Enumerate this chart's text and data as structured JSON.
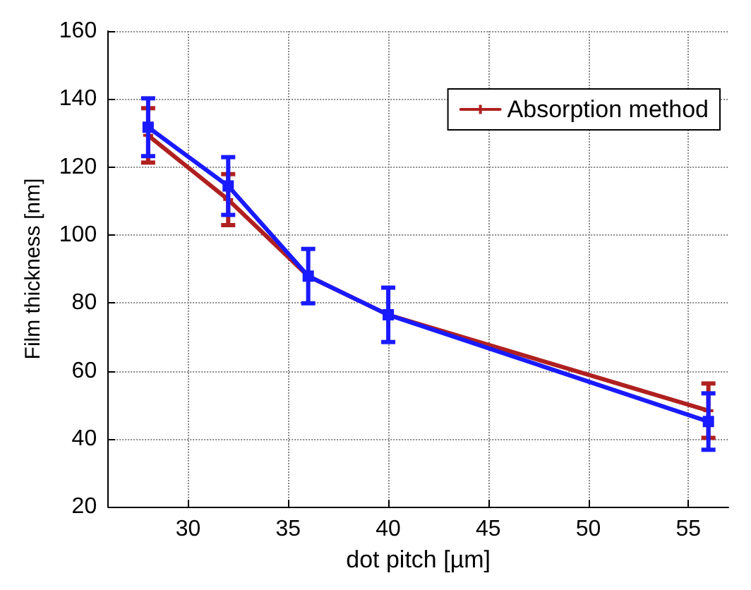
{
  "chart_data": {
    "type": "line",
    "xlabel": "dot pitch [µm]",
    "ylabel": "Film thickness [nm]",
    "x": [
      28,
      32,
      36,
      40,
      56
    ],
    "series": [
      {
        "name": "Absorption method",
        "color": "#b02020",
        "marker": "cross",
        "values": [
          129.3,
          110.4,
          87.9,
          76.5,
          48.3
        ],
        "errors": [
          8,
          7.5,
          null,
          null,
          8
        ]
      },
      {
        "color": "#1a1aff",
        "marker": "square",
        "values": [
          131.7,
          114.4,
          87.9,
          76.5,
          45.1
        ],
        "errors": [
          8.5,
          8.5,
          8,
          8,
          8.3
        ]
      }
    ],
    "xlim": [
      26,
      57
    ],
    "xticks": [
      30,
      35,
      40,
      45,
      50,
      55
    ],
    "ylim": [
      20,
      160
    ],
    "yticks": [
      20,
      40,
      60,
      80,
      100,
      120,
      140,
      160
    ],
    "grid": true,
    "line_style": "solid",
    "legend": "top right"
  }
}
